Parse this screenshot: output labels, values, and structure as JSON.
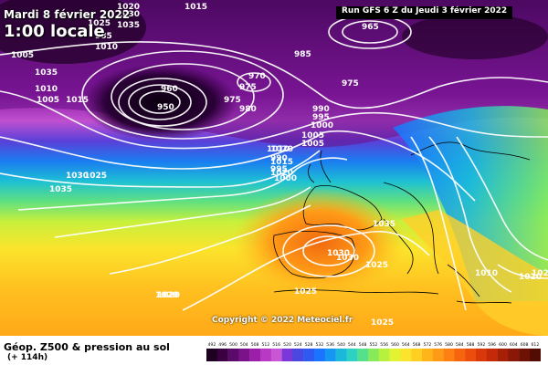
{
  "header": {
    "date": "Mardi 8 février 2022",
    "local_time": "1:00 locale",
    "run": "Run GFS 6 Z du Jeudi 3 février 2022"
  },
  "copyright": "Copyright © 2022 Meteociel.fr",
  "footer": {
    "title": "Géop. Z500 & pression au sol",
    "lead": "(+ 114h)"
  },
  "legend": {
    "ticks": [
      "492",
      "496",
      "500",
      "504",
      "508",
      "512",
      "516",
      "520",
      "524",
      "528",
      "532",
      "536",
      "540",
      "544",
      "548",
      "552",
      "556",
      "560",
      "564",
      "568",
      "572",
      "576",
      "580",
      "584",
      "588",
      "592",
      "596",
      "600",
      "604",
      "608",
      "612"
    ],
    "colors": [
      "#1e0021",
      "#3a0042",
      "#5a0a68",
      "#7a1389",
      "#9b1fa8",
      "#b83ac4",
      "#c956d4",
      "#7a38d8",
      "#4a46e0",
      "#2e5af0",
      "#1a74ff",
      "#1596f2",
      "#1bb8dc",
      "#2ed2c4",
      "#55e08e",
      "#86ea5a",
      "#b8f040",
      "#e4f234",
      "#fbe42c",
      "#ffcf22",
      "#ffb41a",
      "#ff9a16",
      "#ff8012",
      "#f6640e",
      "#ec4c0c",
      "#d8380a",
      "#c42a08",
      "#a62008",
      "#8a1808",
      "#6e1206",
      "#520c04"
    ]
  },
  "pressure_labels": [
    "1005",
    "1030",
    "1025",
    "1035",
    "1020",
    "1035",
    "1010",
    "1005",
    "1015",
    "1025",
    "1030",
    "1035",
    "1020",
    "1010",
    "1015",
    "1020",
    "1005",
    "1000",
    "995",
    "990",
    "985",
    "980",
    "975",
    "970",
    "975",
    "965",
    "960",
    "950",
    "985",
    "975",
    "990",
    "995",
    "1000",
    "1005",
    "1010",
    "1015",
    "1020",
    "1035",
    "1030",
    "1030",
    "1025",
    "1020",
    "1025",
    "1025",
    "1010",
    "1020",
    "1025"
  ]
}
